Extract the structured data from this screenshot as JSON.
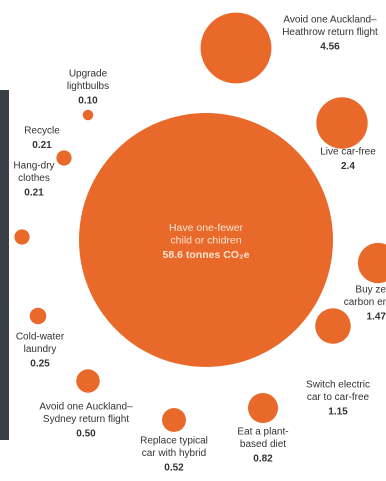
{
  "chart_data": {
    "type": "bubble",
    "color": "#e8692a",
    "categories": [
      [
        "Avoid one Auckland–",
        "Heathrow return flight"
      ],
      [
        "Have one-fewer",
        "child or chidren"
      ],
      [
        "Upgrade",
        "lightbulbs"
      ],
      [
        "Recycle"
      ],
      [
        "Hang-dry",
        "clothes"
      ],
      [
        "Live car-free"
      ],
      [
        "Buy ze",
        "carbon er"
      ],
      [
        "Cold-water",
        "laundry"
      ],
      [
        "Switch electric",
        "car to car-free"
      ],
      [
        "Avoid one Auckland–",
        "Sydney return flight"
      ],
      [
        "Eat a plant-",
        "based diet"
      ],
      [
        "Replace typical",
        "car with hybrid"
      ]
    ],
    "values": [
      4.56,
      58.6,
      0.1,
      0.21,
      0.21,
      2.4,
      1.47,
      0.25,
      1.15,
      0.5,
      0.82,
      0.52
    ],
    "value_labels": [
      "4.56",
      "58.6 tonnes CO₂e",
      "0.10",
      "0.21",
      "0.21",
      "2.4",
      "1.47",
      "0.25",
      "1.15",
      "0.50",
      "0.82",
      "0.52"
    ]
  }
}
